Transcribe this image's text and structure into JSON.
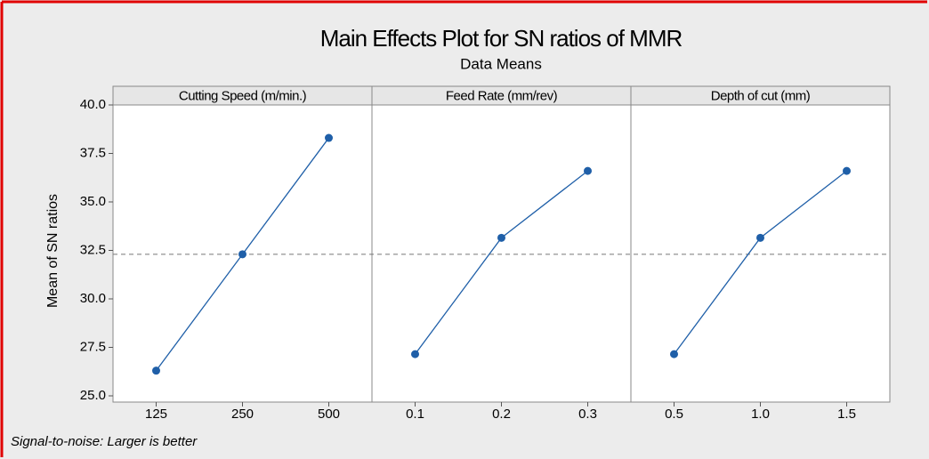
{
  "title": "Main Effects Plot for SN ratios of MMR",
  "subtitle": "Data Means",
  "y_label": "Mean of SN ratios",
  "footnote": "Signal-to-noise: Larger is better",
  "ylim": [
    25,
    40
  ],
  "yticks": [
    {
      "value": 25,
      "label": "25.0"
    },
    27.5,
    {
      "value": 30,
      "label": "30.0"
    },
    32.5,
    {
      "value": 35,
      "label": "35.0"
    },
    37.5,
    {
      "value": 40,
      "label": "40.0"
    }
  ],
  "mean_line": 32.3,
  "chart_data": [
    {
      "type": "line",
      "title": "Cutting Speed (m/min.)",
      "categories": [
        "125",
        "250",
        "500"
      ],
      "values": [
        26.3,
        32.3,
        38.3
      ],
      "color": "#1f5fa8"
    },
    {
      "type": "line",
      "title": "Feed Rate (mm/rev)",
      "categories": [
        "0.1",
        "0.2",
        "0.3"
      ],
      "values": [
        27.15,
        33.15,
        36.6
      ],
      "color": "#1f5fa8"
    },
    {
      "type": "line",
      "title": "Depth of cut (mm)",
      "categories": [
        "0.5",
        "1.0",
        "1.5"
      ],
      "values": [
        27.15,
        33.15,
        36.6
      ],
      "color": "#1f5fa8"
    }
  ]
}
